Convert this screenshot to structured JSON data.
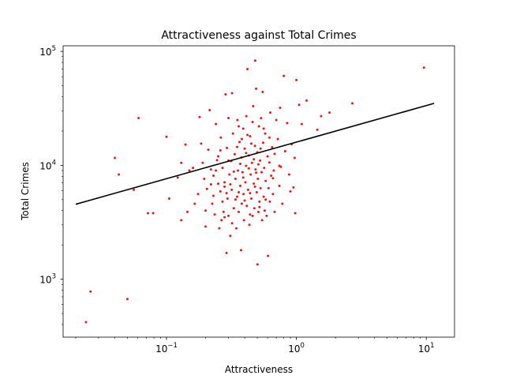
{
  "chart_data": {
    "type": "scatter",
    "title": "Attractiveness against Total Crimes",
    "xlabel": "Attractiveness",
    "ylabel": "Total Crimes",
    "xscale": "log",
    "yscale": "log",
    "xlim": [
      0.016,
      16.5
    ],
    "ylim": [
      310,
      112000
    ],
    "grid": false,
    "xticks": [
      {
        "value": 0.1,
        "base": "10",
        "exp": "−1"
      },
      {
        "value": 1,
        "base": "10",
        "exp": "0"
      },
      {
        "value": 10,
        "base": "10",
        "exp": "1"
      }
    ],
    "yticks": [
      {
        "value": 1000,
        "base": "10",
        "exp": "3"
      },
      {
        "value": 10000,
        "base": "10",
        "exp": "4"
      },
      {
        "value": 100000,
        "base": "10",
        "exp": "5"
      }
    ],
    "point_color": "#e41a1c",
    "line_color": "#000000",
    "fit_line": {
      "x": [
        0.02,
        11.5
      ],
      "y": [
        4550,
        35000
      ]
    },
    "points": [
      [
        0.024,
        420
      ],
      [
        0.026,
        780
      ],
      [
        0.05,
        670
      ],
      [
        0.04,
        11600
      ],
      [
        0.043,
        8300
      ],
      [
        0.056,
        6100
      ],
      [
        0.061,
        26000
      ],
      [
        0.072,
        3800
      ],
      [
        0.079,
        3800
      ],
      [
        0.1,
        17800
      ],
      [
        0.105,
        5100
      ],
      [
        0.122,
        7800
      ],
      [
        0.13,
        3300
      ],
      [
        0.13,
        10500
      ],
      [
        0.14,
        15200
      ],
      [
        0.145,
        3900
      ],
      [
        0.15,
        9000
      ],
      [
        0.16,
        9500
      ],
      [
        0.165,
        4600
      ],
      [
        0.175,
        5600
      ],
      [
        0.18,
        26500
      ],
      [
        0.185,
        15500
      ],
      [
        0.19,
        10500
      ],
      [
        0.195,
        7600
      ],
      [
        0.2,
        4000
      ],
      [
        0.2,
        2900
      ],
      [
        0.205,
        6200
      ],
      [
        0.21,
        13700
      ],
      [
        0.215,
        30500
      ],
      [
        0.22,
        9200
      ],
      [
        0.225,
        4600
      ],
      [
        0.23,
        8100
      ],
      [
        0.235,
        3700
      ],
      [
        0.24,
        23000
      ],
      [
        0.245,
        11100
      ],
      [
        0.25,
        6900
      ],
      [
        0.255,
        2800
      ],
      [
        0.26,
        5900
      ],
      [
        0.262,
        17500
      ],
      [
        0.265,
        3300
      ],
      [
        0.27,
        9500
      ],
      [
        0.275,
        3900
      ],
      [
        0.28,
        7100
      ],
      [
        0.285,
        42000
      ],
      [
        0.29,
        1700
      ],
      [
        0.292,
        14200
      ],
      [
        0.295,
        5100
      ],
      [
        0.3,
        26000
      ],
      [
        0.3,
        3600
      ],
      [
        0.305,
        8300
      ],
      [
        0.31,
        2400
      ],
      [
        0.315,
        10900
      ],
      [
        0.318,
        6100
      ],
      [
        0.32,
        43000
      ],
      [
        0.325,
        19000
      ],
      [
        0.33,
        4200
      ],
      [
        0.335,
        12500
      ],
      [
        0.34,
        7600
      ],
      [
        0.345,
        2800
      ],
      [
        0.35,
        5300
      ],
      [
        0.352,
        25000
      ],
      [
        0.355,
        9000
      ],
      [
        0.36,
        3900
      ],
      [
        0.365,
        16000
      ],
      [
        0.37,
        6600
      ],
      [
        0.375,
        1800
      ],
      [
        0.378,
        11700
      ],
      [
        0.38,
        4600
      ],
      [
        0.385,
        8700
      ],
      [
        0.39,
        21000
      ],
      [
        0.392,
        5600
      ],
      [
        0.395,
        3300
      ],
      [
        0.4,
        14000
      ],
      [
        0.405,
        7100
      ],
      [
        0.41,
        9900
      ],
      [
        0.412,
        27000
      ],
      [
        0.415,
        4400
      ],
      [
        0.42,
        70000
      ],
      [
        0.425,
        6100
      ],
      [
        0.43,
        12200
      ],
      [
        0.435,
        3000
      ],
      [
        0.44,
        18000
      ],
      [
        0.445,
        8300
      ],
      [
        0.45,
        5100
      ],
      [
        0.455,
        10500
      ],
      [
        0.46,
        3600
      ],
      [
        0.465,
        33000
      ],
      [
        0.47,
        6900
      ],
      [
        0.475,
        4200
      ],
      [
        0.48,
        14800
      ],
      [
        0.482,
        83000
      ],
      [
        0.485,
        9200
      ],
      [
        0.49,
        47000
      ],
      [
        0.495,
        5800
      ],
      [
        0.5,
        13000
      ],
      [
        0.502,
        1350
      ],
      [
        0.505,
        7600
      ],
      [
        0.51,
        3900
      ],
      [
        0.515,
        22000
      ],
      [
        0.52,
        4800
      ],
      [
        0.525,
        11000
      ],
      [
        0.53,
        6300
      ],
      [
        0.535,
        26000
      ],
      [
        0.54,
        8700
      ],
      [
        0.545,
        3300
      ],
      [
        0.55,
        44000
      ],
      [
        0.555,
        15800
      ],
      [
        0.56,
        5300
      ],
      [
        0.565,
        9500
      ],
      [
        0.57,
        4000
      ],
      [
        0.575,
        19000
      ],
      [
        0.58,
        7300
      ],
      [
        0.59,
        3600
      ],
      [
        0.6,
        12000
      ],
      [
        0.605,
        1600
      ],
      [
        0.61,
        6300
      ],
      [
        0.62,
        10600
      ],
      [
        0.625,
        4800
      ],
      [
        0.63,
        29000
      ],
      [
        0.64,
        8100
      ],
      [
        0.65,
        14400
      ],
      [
        0.66,
        5600
      ],
      [
        0.67,
        9000
      ],
      [
        0.68,
        3900
      ],
      [
        0.7,
        25000
      ],
      [
        0.72,
        17000
      ],
      [
        0.74,
        6600
      ],
      [
        0.75,
        32000
      ],
      [
        0.76,
        9700
      ],
      [
        0.78,
        4600
      ],
      [
        0.8,
        61000
      ],
      [
        0.82,
        13300
      ],
      [
        0.85,
        23500
      ],
      [
        0.88,
        8300
      ],
      [
        0.9,
        5900
      ],
      [
        0.92,
        15300
      ],
      [
        0.95,
        6400
      ],
      [
        0.97,
        11600
      ],
      [
        0.98,
        3800
      ],
      [
        1.0,
        56000
      ],
      [
        1.05,
        34000
      ],
      [
        1.1,
        23000
      ],
      [
        1.2,
        37000
      ],
      [
        1.45,
        20500
      ],
      [
        1.55,
        27000
      ],
      [
        1.8,
        29000
      ],
      [
        2.7,
        35000
      ],
      [
        9.6,
        72000
      ],
      [
        0.24,
        9000
      ],
      [
        0.26,
        13500
      ],
      [
        0.28,
        6500
      ],
      [
        0.3,
        11000
      ],
      [
        0.33,
        8800
      ],
      [
        0.35,
        14500
      ],
      [
        0.37,
        10300
      ],
      [
        0.39,
        7800
      ],
      [
        0.41,
        12800
      ],
      [
        0.43,
        9400
      ],
      [
        0.45,
        15500
      ],
      [
        0.47,
        11300
      ],
      [
        0.49,
        8600
      ],
      [
        0.51,
        10200
      ],
      [
        0.53,
        14000
      ],
      [
        0.34,
        5000
      ],
      [
        0.36,
        5800
      ],
      [
        0.4,
        4900
      ],
      [
        0.44,
        5700
      ],
      [
        0.48,
        6500
      ],
      [
        0.27,
        4800
      ],
      [
        0.29,
        5700
      ],
      [
        0.31,
        6800
      ],
      [
        0.23,
        5400
      ],
      [
        0.25,
        12000
      ],
      [
        0.42,
        18500
      ],
      [
        0.38,
        17000
      ],
      [
        0.36,
        22000
      ],
      [
        0.46,
        24000
      ],
      [
        0.56,
        21000
      ],
      [
        0.62,
        17500
      ],
      [
        0.68,
        12600
      ],
      [
        0.74,
        9900
      ],
      [
        0.66,
        7700
      ],
      [
        0.58,
        5000
      ],
      [
        0.52,
        4300
      ],
      [
        0.44,
        3700
      ],
      [
        0.32,
        3100
      ],
      [
        0.28,
        3500
      ],
      [
        0.22,
        6800
      ]
    ]
  }
}
